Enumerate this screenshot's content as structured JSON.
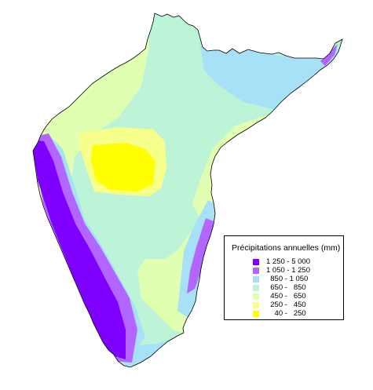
{
  "legend": {
    "title": "Précipitations annuelles (mm)",
    "items": [
      {
        "label": "1 250 - 5 000",
        "color": "#7f00ff"
      },
      {
        "label": "1 050 - 1 250",
        "color": "#b266ff"
      },
      {
        "label": "  850 - 1 050",
        "color": "#a6e1f7"
      },
      {
        "label": "  650 -   850",
        "color": "#bdf4d8"
      },
      {
        "label": "  450 -   650",
        "color": "#e0ffb0"
      },
      {
        "label": "  250 -   450",
        "color": "#f5ff8a"
      },
      {
        "label": "    40 -   250",
        "color": "#ffff00"
      }
    ]
  },
  "map": {
    "region_colors": {
      "very_wet": "#7f00ff",
      "wet": "#b266ff",
      "moderate_wet": "#a6e1f7",
      "moderate": "#bdf4d8",
      "semi_dry": "#e0ffb0",
      "dry": "#f5ff8a",
      "very_dry": "#ffff00"
    }
  }
}
